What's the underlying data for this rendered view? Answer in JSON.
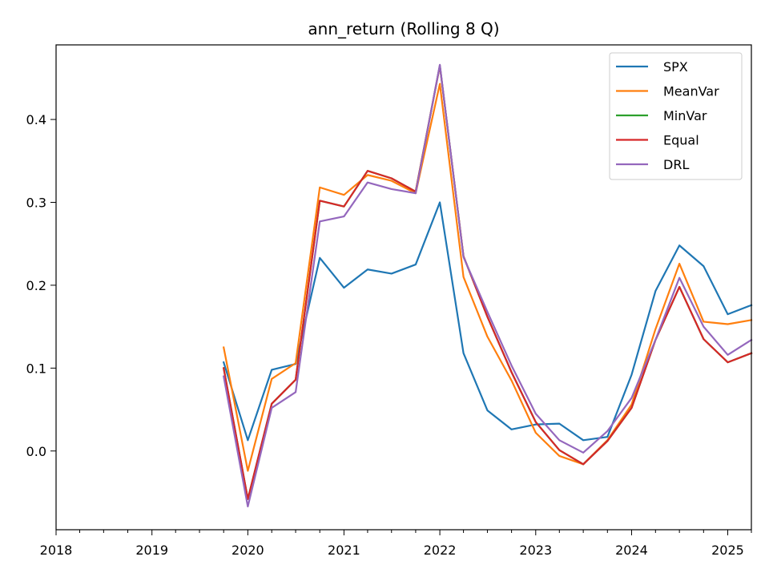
{
  "chart_data": {
    "type": "line",
    "title": "ann_return (Rolling 8 Q)",
    "xlabel": "",
    "ylabel": "",
    "xlim": [
      "2018-01-01",
      "2025-04-01"
    ],
    "ylim": [
      -0.095,
      0.49
    ],
    "x_tick_labels": [
      "2018",
      "2019",
      "2020",
      "2021",
      "2022",
      "2023",
      "2024",
      "2025"
    ],
    "y_tick_labels": [
      "0.0",
      "0.1",
      "0.2",
      "0.3",
      "0.4"
    ],
    "y_ticks": [
      0.0,
      0.1,
      0.2,
      0.3,
      0.4
    ],
    "grid": false,
    "legend_position": "top-right",
    "x": [
      "2019-10-01",
      "2020-01-01",
      "2020-04-01",
      "2020-07-01",
      "2020-10-01",
      "2021-01-01",
      "2021-04-01",
      "2021-07-01",
      "2021-10-01",
      "2022-01-01",
      "2022-04-01",
      "2022-07-01",
      "2022-10-01",
      "2023-01-01",
      "2023-04-01",
      "2023-07-01",
      "2023-10-01",
      "2024-01-01",
      "2024-04-01",
      "2024-07-01",
      "2024-10-01",
      "2025-01-01",
      "2025-04-01"
    ],
    "series": [
      {
        "name": "SPX",
        "color": "#1f77b4",
        "values": [
          0.107,
          0.013,
          0.098,
          0.105,
          0.233,
          0.197,
          0.219,
          0.214,
          0.225,
          0.3,
          0.118,
          0.049,
          0.026,
          0.032,
          0.033,
          0.013,
          0.017,
          0.092,
          0.193,
          0.248,
          0.223,
          0.165,
          0.176
        ]
      },
      {
        "name": "MeanVar",
        "color": "#ff7f0e",
        "values": [
          0.125,
          -0.024,
          0.087,
          0.106,
          0.318,
          0.309,
          0.333,
          0.326,
          0.311,
          0.443,
          0.21,
          0.138,
          0.085,
          0.022,
          -0.006,
          -0.016,
          0.013,
          0.056,
          0.147,
          0.226,
          0.156,
          0.153,
          0.158
        ]
      },
      {
        "name": "MinVar",
        "color": "#2ca02c",
        "values": [
          0.1,
          -0.058,
          0.057,
          0.086,
          0.302,
          0.295,
          0.338,
          0.329,
          0.313,
          0.465,
          0.235,
          0.162,
          0.095,
          0.035,
          0.001,
          -0.016,
          0.012,
          0.052,
          0.134,
          0.198,
          0.135,
          0.107,
          0.118
        ]
      },
      {
        "name": "Equal",
        "color": "#d62728",
        "values": [
          0.1,
          -0.058,
          0.057,
          0.086,
          0.302,
          0.295,
          0.338,
          0.329,
          0.313,
          0.465,
          0.235,
          0.162,
          0.095,
          0.035,
          0.001,
          -0.016,
          0.012,
          0.052,
          0.134,
          0.198,
          0.135,
          0.107,
          0.118
        ]
      },
      {
        "name": "DRL",
        "color": "#9467bd",
        "values": [
          0.09,
          -0.067,
          0.052,
          0.071,
          0.277,
          0.283,
          0.324,
          0.316,
          0.311,
          0.466,
          0.234,
          0.168,
          0.103,
          0.045,
          0.013,
          -0.002,
          0.024,
          0.064,
          0.134,
          0.209,
          0.15,
          0.116,
          0.134
        ]
      }
    ]
  }
}
